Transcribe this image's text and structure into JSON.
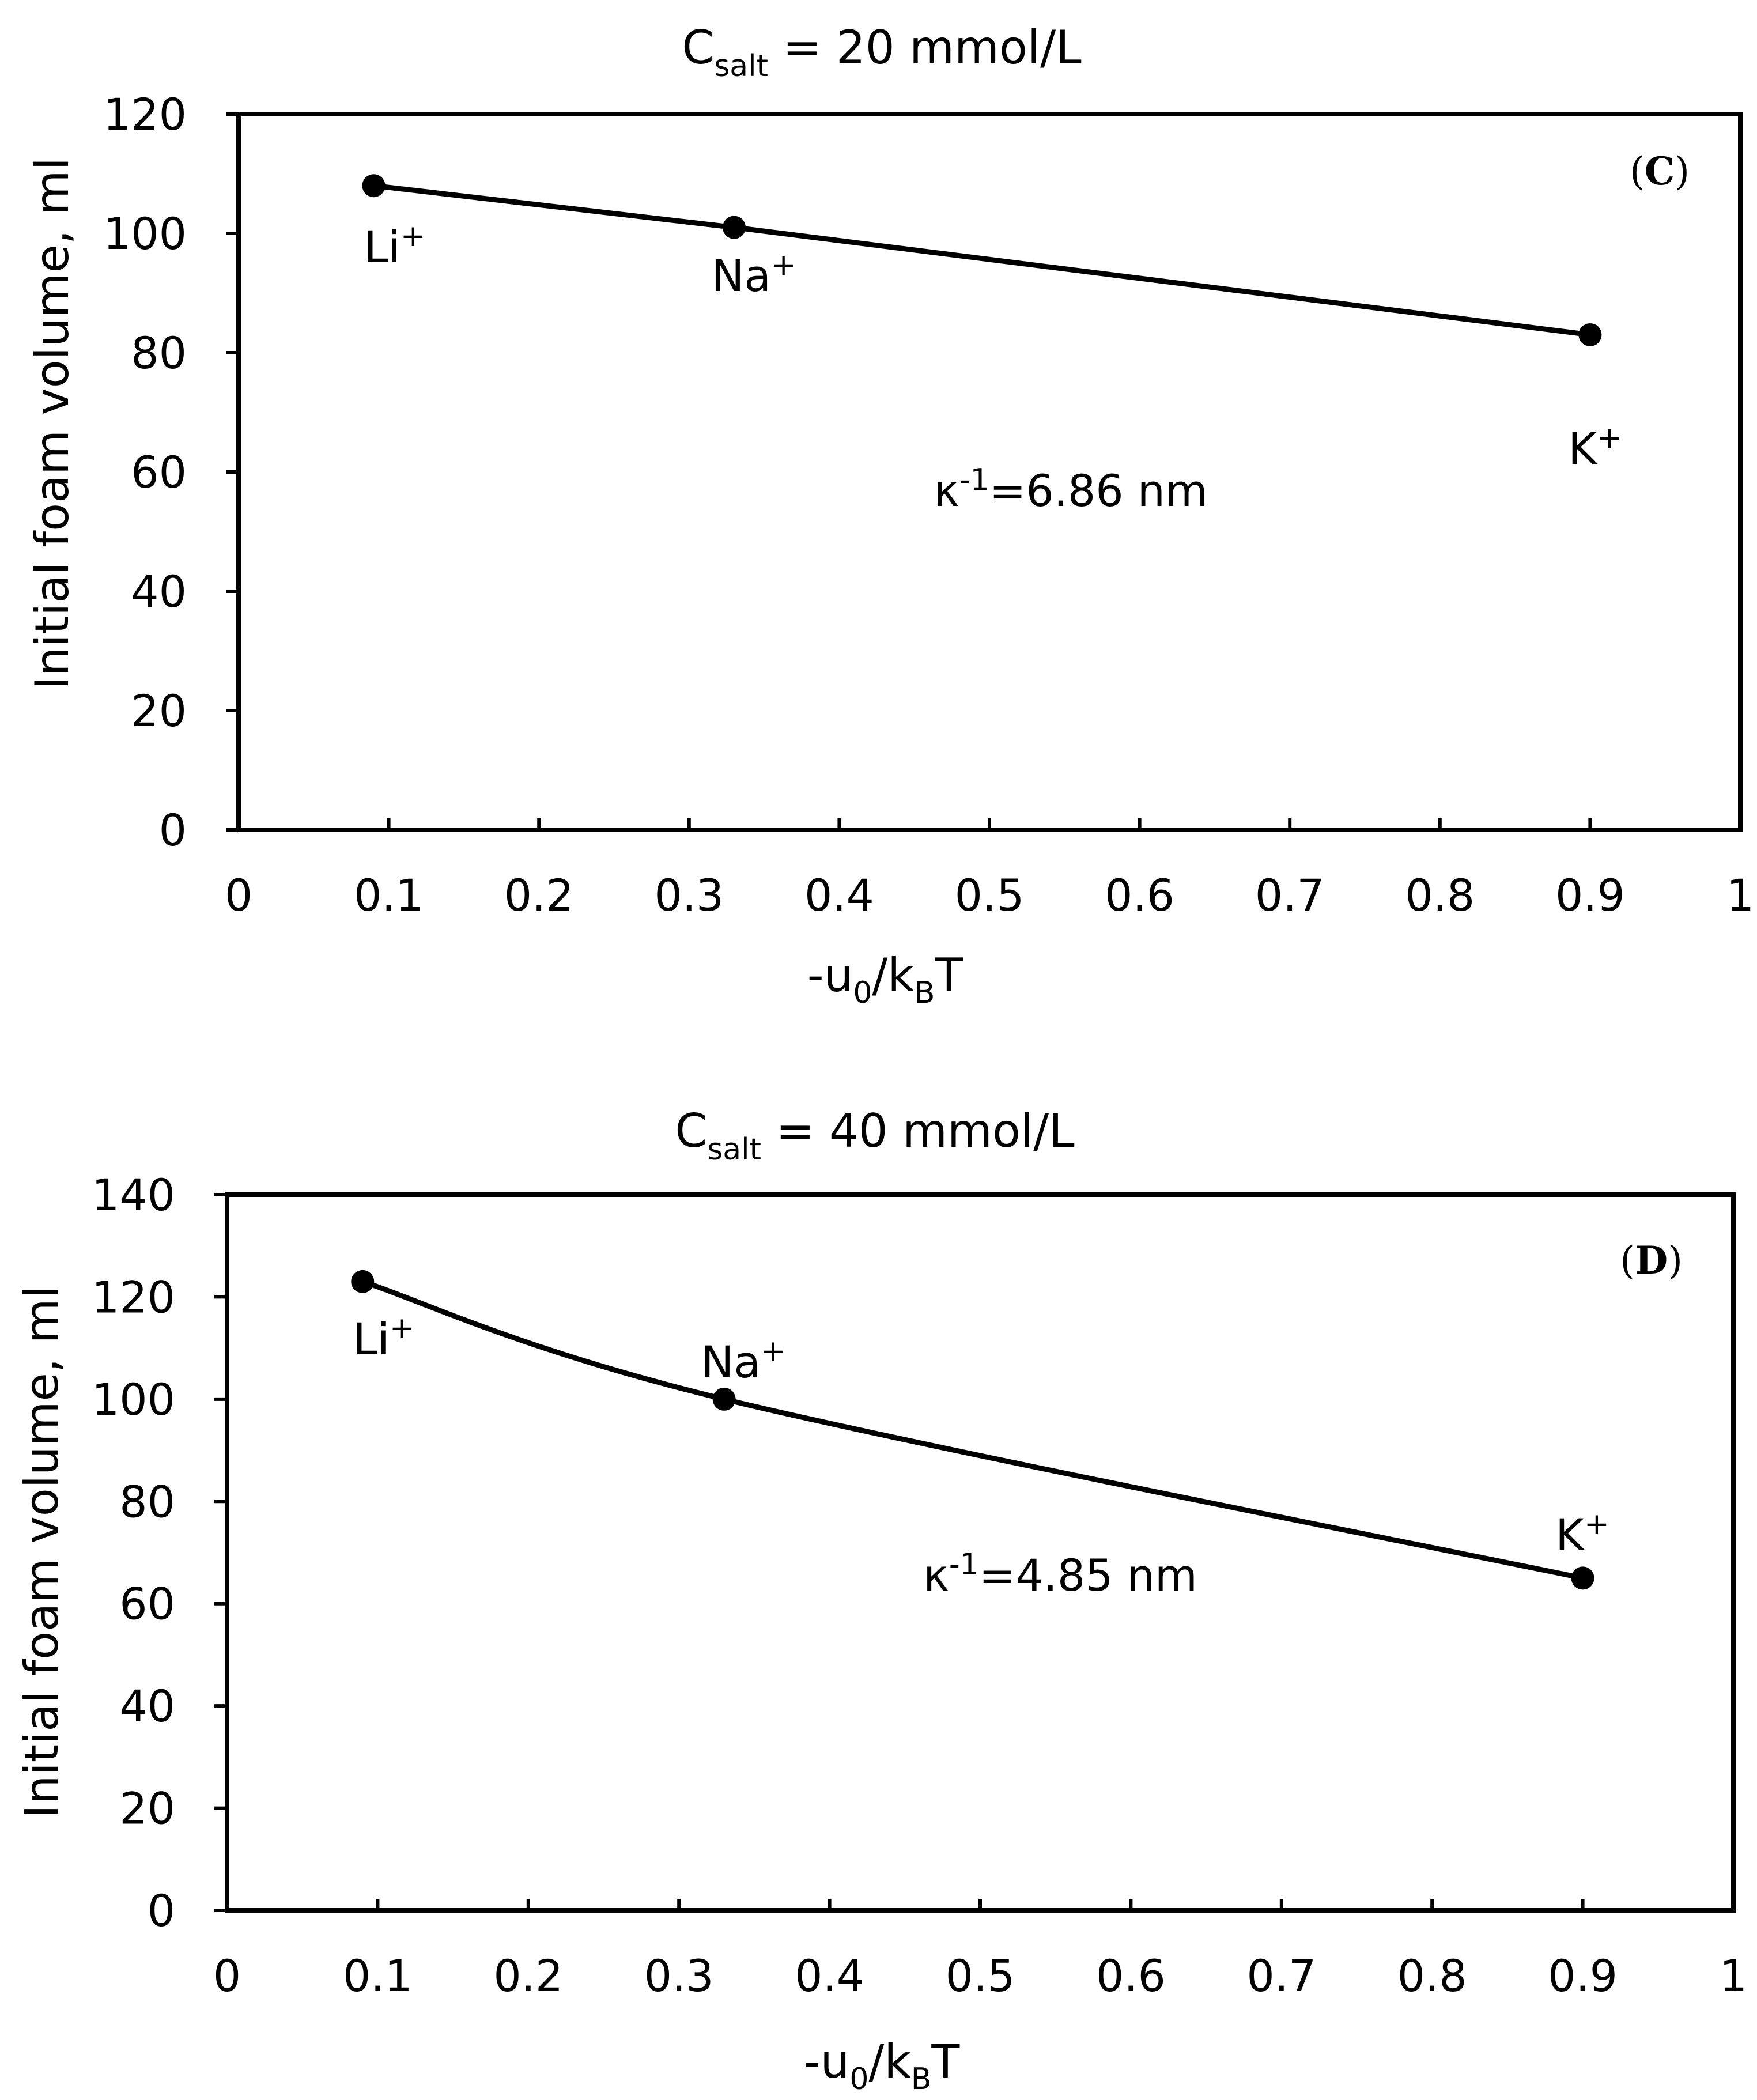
{
  "chart_data": [
    {
      "type": "line",
      "panel": "C",
      "title": {
        "main": "C",
        "sub": "salt",
        "rest": " = 20 mmol/L"
      },
      "xlabel": {
        "pre": "-u",
        "sub1": "0",
        "mid": "/k",
        "sub2": "B",
        "post": "T"
      },
      "ylabel": "Initial foam volume, ml",
      "xlim": [
        0,
        1
      ],
      "ylim": [
        0,
        120
      ],
      "xticks": [
        0,
        0.1,
        0.2,
        0.3,
        0.4,
        0.5,
        0.6,
        0.7,
        0.8,
        0.9,
        1
      ],
      "xtick_labels": [
        "0",
        "0.1",
        "0.2",
        "0.3",
        "0.4",
        "0.5",
        "0.6",
        "0.7",
        "0.8",
        "0.9",
        "1"
      ],
      "yticks": [
        0,
        20,
        40,
        60,
        80,
        100,
        120
      ],
      "ytick_labels": [
        "0",
        "20",
        "40",
        "60",
        "80",
        "100",
        "120"
      ],
      "series": [
        {
          "name": "Initial foam volume",
          "x": [
            0.09,
            0.33,
            0.9
          ],
          "y": [
            108,
            101,
            83
          ]
        }
      ],
      "point_labels": [
        {
          "base": "Li",
          "sup": "+"
        },
        {
          "base": "Na",
          "sup": "+"
        },
        {
          "base": "K",
          "sup": "+"
        }
      ],
      "annotation": {
        "pre": "κ",
        "sup": "-1",
        "post": "=6.86 nm"
      },
      "panel_label": {
        "open": "(",
        "letter": "C",
        "close": ")"
      },
      "smooth": false,
      "grid": false
    },
    {
      "type": "line",
      "panel": "D",
      "title": {
        "main": "C",
        "sub": "salt",
        "rest": " = 40 mmol/L"
      },
      "xlabel": {
        "pre": "-u",
        "sub1": "0",
        "mid": "/k",
        "sub2": "B",
        "post": "T"
      },
      "ylabel": "Initial foam volume, ml",
      "xlim": [
        0,
        1
      ],
      "ylim": [
        0,
        140
      ],
      "xticks": [
        0,
        0.1,
        0.2,
        0.3,
        0.4,
        0.5,
        0.6,
        0.7,
        0.8,
        0.9,
        1
      ],
      "xtick_labels": [
        "0",
        "0.1",
        "0.2",
        "0.3",
        "0.4",
        "0.5",
        "0.6",
        "0.7",
        "0.8",
        "0.9",
        "1"
      ],
      "yticks": [
        0,
        20,
        40,
        60,
        80,
        100,
        120,
        140
      ],
      "ytick_labels": [
        "0",
        "20",
        "40",
        "60",
        "80",
        "100",
        "120",
        "140"
      ],
      "series": [
        {
          "name": "Initial foam volume",
          "x": [
            0.09,
            0.33,
            0.9
          ],
          "y": [
            123,
            100,
            65
          ]
        }
      ],
      "point_labels": [
        {
          "base": "Li",
          "sup": "+"
        },
        {
          "base": "Na",
          "sup": "+"
        },
        {
          "base": "K",
          "sup": "+"
        }
      ],
      "annotation": {
        "pre": "κ",
        "sup": "-1",
        "post": "=4.85 nm"
      },
      "panel_label": {
        "open": "(",
        "letter": "D",
        "close": ")"
      },
      "smooth": true,
      "grid": false
    }
  ]
}
